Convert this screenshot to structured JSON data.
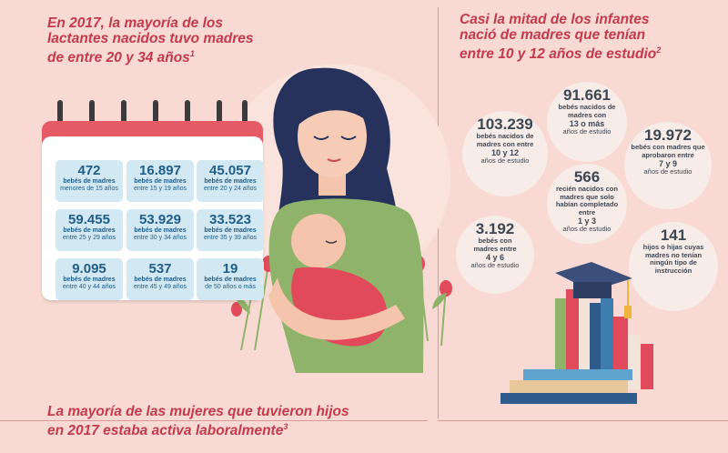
{
  "heading_left": {
    "text": "En 2017, la mayoría de los lactantes nacidos tuvo madres de entre 20 y 34 años",
    "note": "1"
  },
  "heading_right": {
    "text": "Casi la mitad de los infantes nació de madres que tenían entre 10 y 12 años de estudio",
    "note": "2"
  },
  "heading_bottom": {
    "text": "La mayoría de las mujeres que tuvieron hijos en 2017 estaba activa laboralmente",
    "note": "3"
  },
  "calendar": [
    {
      "value": "472",
      "line1": "bebés de madres",
      "line2": "menores de 15 años"
    },
    {
      "value": "16.897",
      "line1": "bebés de madres",
      "line2": "entre 15 y 19 años"
    },
    {
      "value": "45.057",
      "line1": "bebés de madres",
      "line2": "entre 20 y 24 años"
    },
    {
      "value": "59.455",
      "line1": "bebés de madres",
      "line2": "entre 25 y 29 años"
    },
    {
      "value": "53.929",
      "line1": "bebés de madres",
      "line2": "entre 30 y 34 años"
    },
    {
      "value": "33.523",
      "line1": "bebés de madres",
      "line2": "entre 35 y 39 años"
    },
    {
      "value": "9.095",
      "line1": "bebés de madres",
      "line2": "entre 40 y 44 años"
    },
    {
      "value": "537",
      "line1": "bebés de madres",
      "line2": "entre 45 y 49 años"
    },
    {
      "value": "19",
      "line1": "bebés de madres",
      "line2": "de 50 años o más"
    }
  ],
  "education": [
    {
      "value": "103.239",
      "t1": "bebés nacidos de",
      "t2": "madres con entre",
      "b": "10 y 12",
      "t3": "años de estudio"
    },
    {
      "value": "91.661",
      "t1": "bebés nacidos de",
      "t2": "madres con",
      "b": "13 o más",
      "t3": "años de estudio"
    },
    {
      "value": "19.972",
      "t1": "bebés con madres que",
      "t2": "aprobaron entre",
      "b": "7 y 9",
      "t3": "años de estudio"
    },
    {
      "value": "566",
      "t1": "recién nacidos con",
      "t2": "madres que solo",
      "t2b": "habían completado entre",
      "b": "1 y 3",
      "t3": "años de estudio"
    },
    {
      "value": "3.192",
      "t1": "bebés con",
      "t2": "madres  entre",
      "b": "4 y 6",
      "t3": "años de estudio"
    },
    {
      "value": "141",
      "t1": "hijos o hijas cuyas",
      "t2": "madres no tenían",
      "t2b": "ningún tipo de",
      "b": "",
      "t3": "instrucción"
    }
  ],
  "colors": {
    "background": "#f9d9d3",
    "accent": "#c23a4c",
    "calendar_red": "#e55a64",
    "cell_blue": "#d2e8f2",
    "number_blue": "#1f5d8b"
  }
}
